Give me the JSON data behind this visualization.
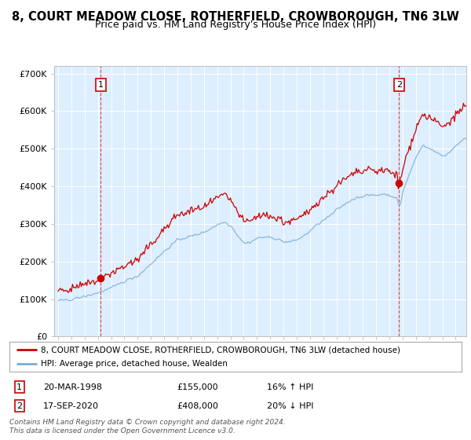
{
  "title": "8, COURT MEADOW CLOSE, ROTHERFIELD, CROWBOROUGH, TN6 3LW",
  "subtitle": "Price paid vs. HM Land Registry's House Price Index (HPI)",
  "ylim": [
    0,
    720000
  ],
  "yticks": [
    0,
    100000,
    200000,
    300000,
    400000,
    500000,
    600000,
    700000
  ],
  "ytick_labels": [
    "£0",
    "£100K",
    "£200K",
    "£300K",
    "£400K",
    "£500K",
    "£600K",
    "£700K"
  ],
  "sale1": {
    "date_num": 1998.22,
    "price": 155000,
    "label": "1",
    "pct": "16% ↑ HPI",
    "date_str": "20-MAR-1998"
  },
  "sale2": {
    "date_num": 2020.72,
    "price": 408000,
    "label": "2",
    "pct": "20% ↓ HPI",
    "date_str": "17-SEP-2020"
  },
  "legend_line1": "8, COURT MEADOW CLOSE, ROTHERFIELD, CROWBOROUGH, TN6 3LW (detached house)",
  "legend_line2": "HPI: Average price, detached house, Wealden",
  "footer": "Contains HM Land Registry data © Crown copyright and database right 2024.\nThis data is licensed under the Open Government Licence v3.0.",
  "line_color_red": "#cc0000",
  "line_color_blue": "#7aadd4",
  "plot_bg": "#ddeeff",
  "bg_color": "#ffffff",
  "grid_color": "#ffffff",
  "title_fontsize": 10.5,
  "subtitle_fontsize": 9
}
